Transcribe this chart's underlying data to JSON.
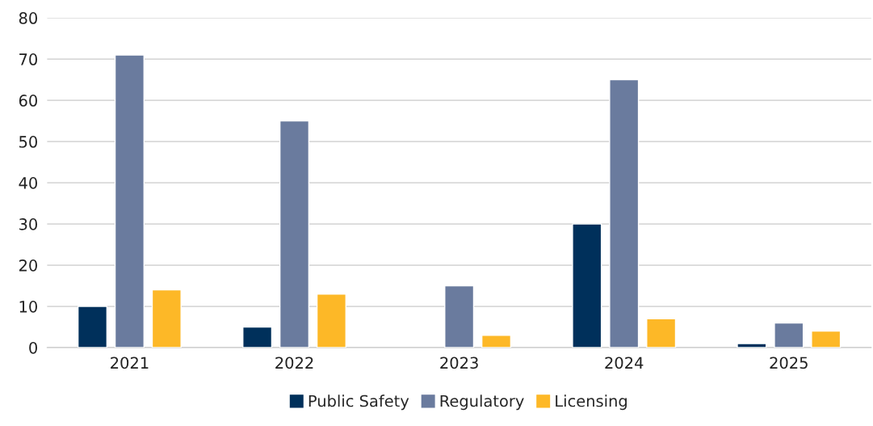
{
  "chart_data": {
    "type": "bar",
    "categories": [
      "2021",
      "2022",
      "2023",
      "2024",
      "2025"
    ],
    "series": [
      {
        "name": "Public Safety",
        "color": "#00305b",
        "values": [
          10,
          5,
          null,
          30,
          1
        ]
      },
      {
        "name": "Regulatory",
        "color": "#6a7b9e",
        "values": [
          71,
          55,
          15,
          65,
          6
        ]
      },
      {
        "name": "Licensing",
        "color": "#fdb827",
        "values": [
          14,
          13,
          3,
          7,
          4
        ]
      }
    ],
    "ylim": [
      0,
      80
    ],
    "yticks": [
      0,
      10,
      20,
      30,
      40,
      50,
      60,
      70,
      80
    ],
    "grid": "y",
    "legend": "bottom"
  }
}
